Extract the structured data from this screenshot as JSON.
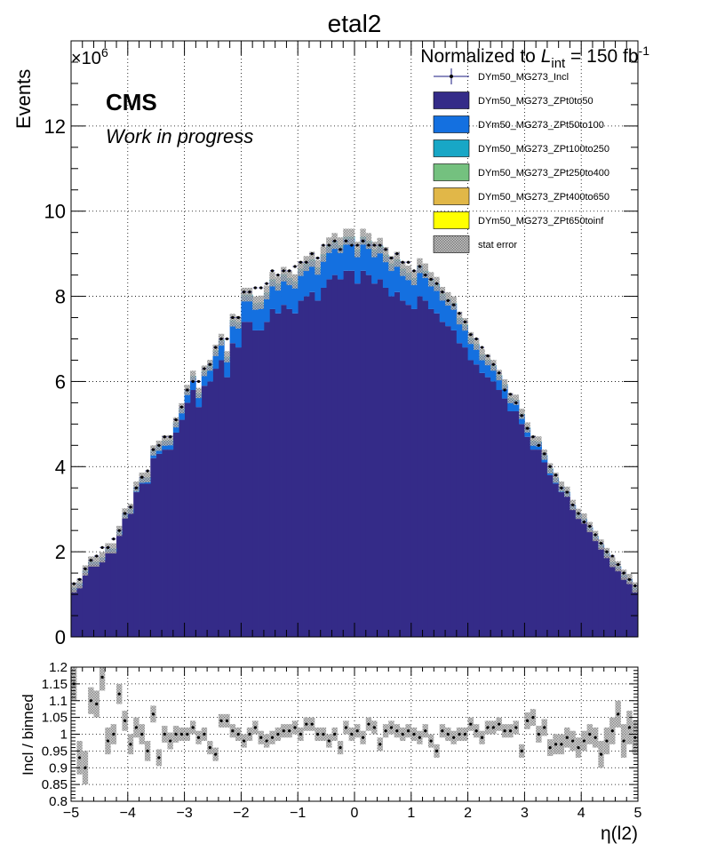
{
  "title": "etal2",
  "header": {
    "lumi_prefix": "Normalized to ",
    "lumi_L": "L",
    "lumi_sub": "int",
    "lumi_mid": " = 150 fb",
    "lumi_sup": "-1"
  },
  "cms_label": "CMS",
  "cms_sublabel": "Work in progress",
  "colors": {
    "ZPt0to50": "#342b88",
    "ZPt50to100": "#1470e0",
    "ZPt100to250": "#18a7c6",
    "ZPt250to400": "#74c17f",
    "ZPt400to650": "#e1b748",
    "ZPt650toinf": "#ffff00",
    "incl": "#1a1a80",
    "stat_error": "#9a9a9a"
  },
  "chart_data": [
    {
      "type": "bar",
      "stacked": true,
      "ylabel": "Events",
      "y_exponent_base": "×10",
      "y_exponent_power": "6",
      "ylim": [
        0,
        14
      ],
      "xlim": [
        -5,
        5
      ],
      "yticks": [
        0,
        2,
        4,
        6,
        8,
        10,
        12
      ],
      "grid": true,
      "legend_position": "top-right",
      "x_bin_width": 0.1,
      "series": [
        {
          "name": "DYm50_MG273_ZPt0to50",
          "values": [
            1.1,
            1.2,
            1.5,
            1.7,
            1.7,
            1.8,
            2.0,
            2.0,
            2.4,
            2.8,
            2.9,
            3.4,
            3.6,
            3.6,
            4.2,
            4.3,
            4.4,
            4.4,
            4.8,
            5.1,
            5.5,
            5.8,
            5.4,
            5.9,
            6.0,
            6.3,
            6.5,
            6.1,
            6.9,
            6.8,
            7.4,
            7.4,
            7.2,
            7.2,
            7.4,
            7.7,
            7.6,
            7.8,
            7.7,
            7.6,
            7.9,
            8.0,
            8.1,
            7.9,
            8.2,
            8.4,
            8.5,
            8.4,
            8.6,
            8.6,
            8.3,
            8.6,
            8.5,
            8.3,
            8.4,
            8.2,
            8.0,
            8.1,
            7.9,
            7.8,
            7.7,
            8.0,
            7.9,
            7.7,
            7.6,
            7.4,
            7.3,
            7.2,
            6.9,
            6.8,
            6.5,
            6.4,
            6.2,
            6.1,
            6.0,
            5.8,
            5.6,
            5.3,
            5.3,
            5.0,
            4.7,
            4.4,
            4.4,
            4.1,
            3.8,
            3.6,
            3.4,
            3.3,
            3.0,
            2.8,
            2.7,
            2.5,
            2.3,
            2.1,
            1.9,
            1.7,
            1.6,
            1.4,
            1.3,
            1.1
          ]
        },
        {
          "name": "DYm50_MG273_ZPt50to100",
          "values": [
            0.05,
            0.05,
            0.05,
            0.06,
            0.06,
            0.06,
            0.07,
            0.07,
            0.08,
            0.09,
            0.1,
            0.12,
            0.13,
            0.14,
            0.16,
            0.17,
            0.19,
            0.2,
            0.22,
            0.25,
            0.28,
            0.3,
            0.3,
            0.32,
            0.35,
            0.4,
            0.45,
            0.45,
            0.5,
            0.55,
            0.6,
            0.6,
            0.6,
            0.62,
            0.64,
            0.65,
            0.65,
            0.67,
            0.68,
            0.7,
            0.7,
            0.72,
            0.72,
            0.73,
            0.74,
            0.75,
            0.75,
            0.75,
            0.75,
            0.75,
            0.75,
            0.75,
            0.75,
            0.75,
            0.74,
            0.73,
            0.72,
            0.72,
            0.7,
            0.7,
            0.68,
            0.67,
            0.65,
            0.65,
            0.64,
            0.62,
            0.6,
            0.6,
            0.55,
            0.5,
            0.48,
            0.45,
            0.4,
            0.38,
            0.35,
            0.32,
            0.3,
            0.28,
            0.25,
            0.22,
            0.2,
            0.19,
            0.17,
            0.16,
            0.14,
            0.13,
            0.12,
            0.1,
            0.09,
            0.08,
            0.07,
            0.07,
            0.06,
            0.06,
            0.06,
            0.05,
            0.05,
            0.05,
            0.05,
            0.05
          ]
        },
        {
          "name": "DYm50_MG273_ZPt100to250",
          "values": [
            0.01,
            0.01,
            0.01,
            0.01,
            0.01,
            0.01,
            0.01,
            0.01,
            0.01,
            0.01,
            0.01,
            0.01,
            0.01,
            0.01,
            0.02,
            0.02,
            0.02,
            0.02,
            0.02,
            0.02,
            0.02,
            0.03,
            0.03,
            0.03,
            0.03,
            0.03,
            0.03,
            0.03,
            0.04,
            0.04,
            0.04,
            0.04,
            0.04,
            0.04,
            0.05,
            0.05,
            0.05,
            0.05,
            0.05,
            0.05,
            0.05,
            0.05,
            0.05,
            0.05,
            0.05,
            0.05,
            0.05,
            0.05,
            0.05,
            0.05,
            0.05,
            0.05,
            0.05,
            0.05,
            0.05,
            0.05,
            0.05,
            0.05,
            0.05,
            0.05,
            0.05,
            0.05,
            0.05,
            0.05,
            0.05,
            0.04,
            0.04,
            0.04,
            0.04,
            0.04,
            0.04,
            0.03,
            0.03,
            0.03,
            0.03,
            0.03,
            0.03,
            0.03,
            0.02,
            0.02,
            0.02,
            0.02,
            0.02,
            0.02,
            0.02,
            0.01,
            0.01,
            0.01,
            0.01,
            0.01,
            0.01,
            0.01,
            0.01,
            0.01,
            0.01,
            0.01,
            0.01,
            0.01,
            0.01,
            0.01
          ]
        },
        {
          "name": "DYm50_MG273_ZPt250to400",
          "values": []
        },
        {
          "name": "DYm50_MG273_ZPt400to650",
          "values": []
        },
        {
          "name": "DYm50_MG273_ZPt650toinf",
          "values": []
        }
      ],
      "incl": {
        "name": "DYm50_MG273_Incl",
        "values": [
          1.25,
          1.35,
          1.6,
          1.8,
          1.9,
          2.1,
          2.1,
          2.3,
          2.5,
          2.9,
          3.05,
          3.5,
          3.75,
          3.9,
          4.4,
          4.5,
          4.7,
          4.7,
          5.1,
          5.4,
          5.8,
          6.0,
          6.0,
          6.3,
          6.4,
          6.8,
          7.0,
          7.0,
          7.5,
          7.5,
          8.1,
          8.1,
          8.2,
          8.2,
          8.3,
          8.6,
          8.5,
          8.6,
          8.6,
          8.7,
          8.8,
          8.8,
          9.0,
          8.9,
          9.2,
          9.2,
          9.3,
          9.1,
          9.3,
          9.2,
          9.2,
          9.3,
          9.2,
          9.2,
          9.2,
          9.1,
          8.9,
          9.0,
          8.8,
          8.8,
          8.6,
          8.7,
          8.5,
          8.4,
          8.3,
          8.1,
          7.9,
          7.8,
          7.6,
          7.4,
          7.1,
          7.0,
          6.8,
          6.6,
          6.4,
          6.2,
          5.8,
          5.7,
          5.5,
          5.2,
          4.9,
          4.7,
          4.5,
          4.3,
          4.0,
          3.8,
          3.5,
          3.4,
          3.1,
          2.9,
          2.7,
          2.6,
          2.4,
          2.2,
          2.0,
          1.9,
          1.7,
          1.5,
          1.35,
          1.2
        ]
      },
      "stat_error": {
        "name": "stat error"
      }
    },
    {
      "type": "scatter",
      "ylabel": "Incl / binned",
      "xlabel": "η(l2)",
      "xlim": [
        -5,
        5
      ],
      "ylim": [
        0.8,
        1.2
      ],
      "xticks": [
        -5,
        -4,
        -3,
        -2,
        -1,
        0,
        1,
        2,
        3,
        4,
        5
      ],
      "yticks": [
        0.8,
        0.85,
        0.9,
        0.95,
        1,
        1.05,
        1.1,
        1.15,
        1.2
      ],
      "ytick_labels": [
        "0.8",
        "0.85",
        "0.9",
        "0.95",
        "1",
        "1.05",
        "1.1",
        "1.15",
        "1.2"
      ],
      "xtick_labels": [
        "−5",
        "−4",
        "−3",
        "−2",
        "−1",
        "0",
        "1",
        "2",
        "3",
        "4",
        "5"
      ],
      "grid": true,
      "ratio": [
        1.15,
        0.93,
        0.9,
        1.1,
        1.09,
        1.17,
        0.98,
        1.0,
        1.12,
        1.04,
        0.97,
        1.02,
        1.0,
        0.95,
        1.06,
        0.93,
        1.0,
        0.98,
        1.0,
        1.0,
        1.0,
        1.02,
        0.99,
        1.0,
        0.96,
        0.94,
        1.04,
        1.04,
        1.01,
        1.0,
        0.98,
        1.0,
        1.02,
        0.99,
        0.98,
        0.99,
        1.0,
        1.01,
        1.01,
        1.02,
        1.0,
        1.03,
        1.03,
        1.0,
        1.0,
        0.98,
        1.0,
        0.96,
        1.02,
        1.0,
        1.01,
        0.99,
        1.03,
        1.02,
        0.97,
        1.01,
        1.02,
        1.01,
        1.0,
        1.01,
        1.0,
        0.99,
        1.01,
        0.98,
        0.95,
        1.01,
        1.0,
        0.99,
        1.0,
        1.0,
        1.03,
        1.01,
        0.99,
        1.02,
        1.02,
        1.03,
        1.01,
        1.01,
        1.02,
        0.95,
        1.04,
        1.05,
        1.0,
        1.02,
        0.96,
        0.97,
        0.97,
        0.99,
        0.98,
        0.96,
        0.98,
        1.0,
        0.99,
        0.94,
        0.98,
        1.01,
        1.06,
        0.98,
        1.02,
        0.99
      ],
      "ratio_err": [
        0.05,
        0.05,
        0.05,
        0.04,
        0.04,
        0.04,
        0.04,
        0.03,
        0.03,
        0.03,
        0.03,
        0.03,
        0.03,
        0.03,
        0.025,
        0.025,
        0.025,
        0.025,
        0.025,
        0.02,
        0.02,
        0.02,
        0.02,
        0.02,
        0.02,
        0.02,
        0.02,
        0.02,
        0.02,
        0.02,
        0.02,
        0.02,
        0.02,
        0.02,
        0.02,
        0.02,
        0.02,
        0.02,
        0.02,
        0.02,
        0.02,
        0.02,
        0.02,
        0.02,
        0.02,
        0.02,
        0.02,
        0.02,
        0.02,
        0.02,
        0.02,
        0.02,
        0.02,
        0.02,
        0.02,
        0.02,
        0.02,
        0.02,
        0.02,
        0.02,
        0.02,
        0.02,
        0.02,
        0.02,
        0.02,
        0.02,
        0.02,
        0.02,
        0.02,
        0.02,
        0.02,
        0.02,
        0.02,
        0.02,
        0.02,
        0.02,
        0.02,
        0.02,
        0.02,
        0.02,
        0.025,
        0.025,
        0.025,
        0.025,
        0.025,
        0.03,
        0.03,
        0.03,
        0.03,
        0.03,
        0.03,
        0.03,
        0.03,
        0.04,
        0.04,
        0.04,
        0.04,
        0.05,
        0.05,
        0.05
      ]
    }
  ]
}
